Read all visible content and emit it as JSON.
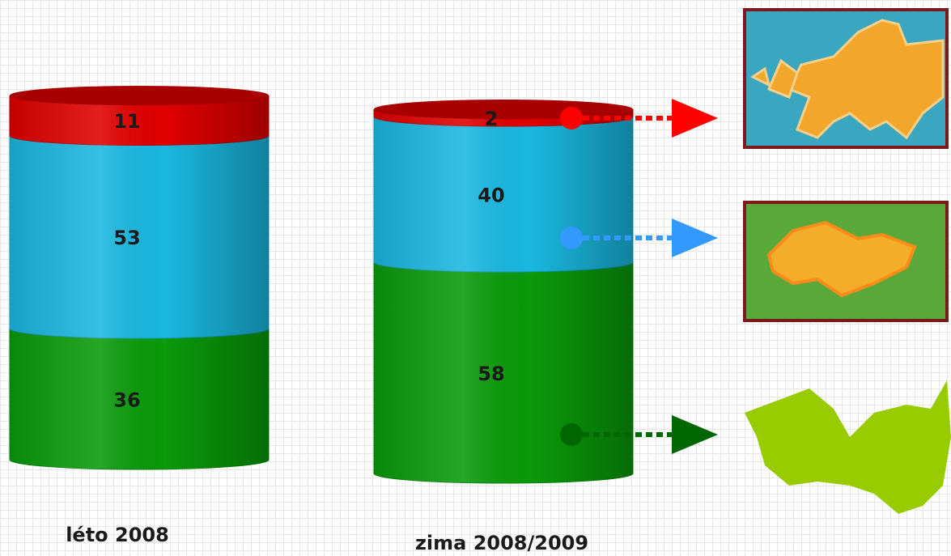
{
  "chart_data": {
    "type": "bar",
    "stacked": true,
    "categories": [
      "léto 2008",
      "zima 2008/2009"
    ],
    "series": [
      {
        "color": "#0a9a0a",
        "values": [
          36,
          58
        ]
      },
      {
        "color": "#1ab8e0",
        "values": [
          53,
          40
        ]
      },
      {
        "color": "#e00000",
        "values": [
          11,
          2
        ]
      }
    ]
  }
}
